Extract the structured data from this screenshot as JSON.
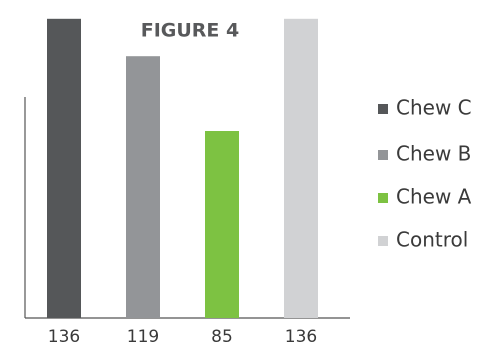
{
  "chart_data": {
    "type": "bar",
    "title": "FIGURE 4",
    "categories": [
      "Chew C",
      "Chew B",
      "Chew A",
      "Control"
    ],
    "values": [
      136,
      119,
      85,
      136
    ],
    "colors": [
      "#555759",
      "#939598",
      "#7dc242",
      "#d1d2d4"
    ],
    "legend": "right"
  }
}
